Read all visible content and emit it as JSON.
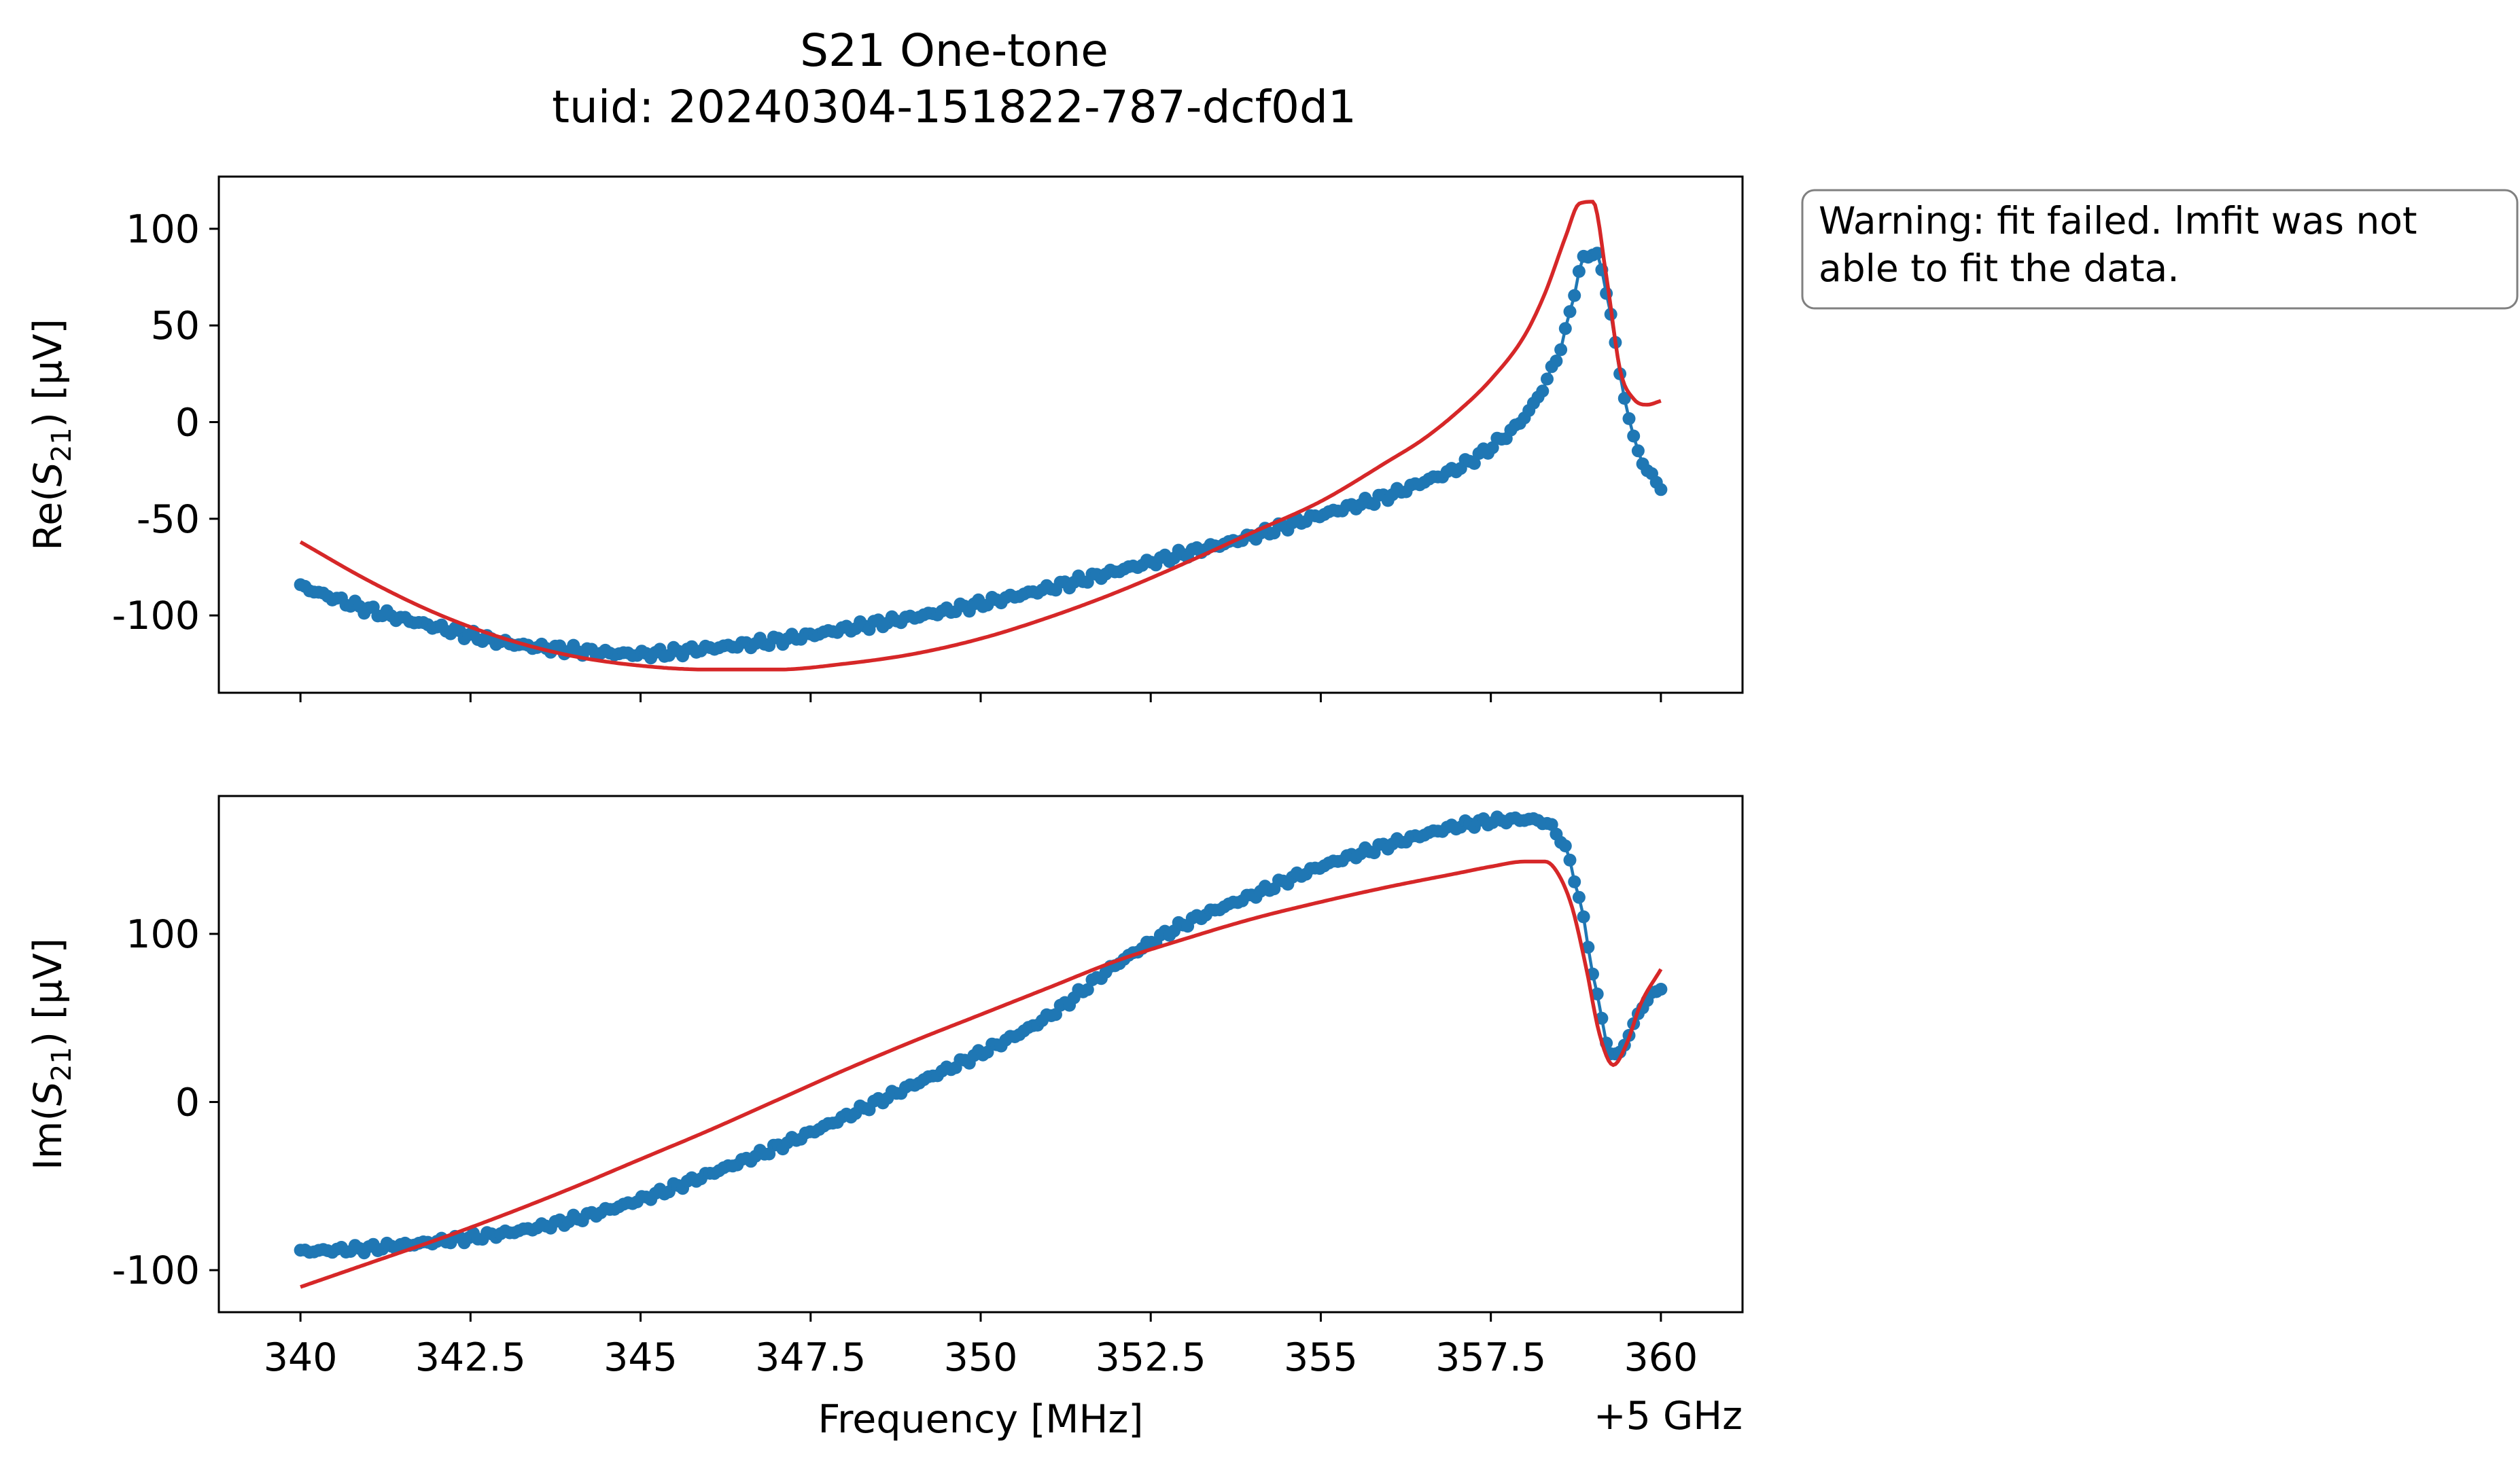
{
  "figure": {
    "title_line1": "S21 One-tone",
    "title_line2": "tuid: 20240304-151822-787-dcf0d1",
    "warning_line1": "Warning: fit failed. lmfit was not",
    "warning_line2": "able to fit the data.",
    "x_offset_label": "+5 GHz",
    "colors": {
      "data": "#1f77b4",
      "fit": "#d62728",
      "axes": "#000000",
      "warning_border": "#808080"
    }
  },
  "chart_data": [
    {
      "type": "line",
      "panel": "top",
      "xlabel": "",
      "ylabel": "Re(S21) [µV]",
      "ylabel_parts": {
        "pre": "Re(",
        "S": "S",
        "sub": "21",
        "post": ") [µV]"
      },
      "xlim": [
        338.8,
        361.2
      ],
      "ylim": [
        -140,
        127
      ],
      "x_ticks": [
        340,
        342.5,
        345,
        347.5,
        350,
        352.5,
        355,
        357.5,
        360
      ],
      "x_tick_labels_visible": false,
      "y_ticks": [
        100,
        50,
        0,
        -50,
        -100
      ],
      "y_tick_labels": [
        "100",
        "50",
        "0",
        "-50",
        "-100"
      ],
      "grid": false,
      "x_anchors": [
        340,
        341,
        342,
        343,
        344,
        345,
        346,
        347,
        348,
        349,
        350,
        351,
        352,
        353,
        354,
        355,
        356,
        356.5,
        357,
        357.5,
        358,
        358.3,
        358.6,
        358.8,
        359.0,
        359.2,
        359.4,
        359.6,
        359.8,
        360
      ],
      "series": [
        {
          "role": "data",
          "markers": true,
          "n_points": 300,
          "y_anchors": [
            -85,
            -97,
            -106,
            -114,
            -118,
            -120,
            -117,
            -113,
            -107,
            -101,
            -94,
            -86,
            -77,
            -68,
            -59,
            -48,
            -38,
            -31,
            -24,
            -13,
            3,
            20,
            47,
            78,
            88,
            68,
            25,
            -8,
            -25,
            -33
          ]
        },
        {
          "role": "fit",
          "markers": false,
          "y_anchors": [
            -62,
            -82,
            -99,
            -112,
            -121,
            -126,
            -128,
            -128,
            -125,
            -120,
            -112,
            -101,
            -88,
            -73,
            -57,
            -41,
            -20,
            -9,
            5,
            22,
            45,
            67,
            96,
            113,
            114,
            75,
            27,
            12,
            9,
            11
          ]
        }
      ]
    },
    {
      "type": "line",
      "panel": "bottom",
      "xlabel": "Frequency [MHz]",
      "ylabel": "Im(S21) [µV]",
      "ylabel_parts": {
        "pre": "Im(",
        "S": "S",
        "sub": "21",
        "post": ") [µV]"
      },
      "xlim": [
        338.8,
        361.2
      ],
      "ylim": [
        -125,
        182
      ],
      "x_ticks": [
        340,
        342.5,
        345,
        347.5,
        350,
        352.5,
        355,
        357.5,
        360
      ],
      "x_tick_labels": [
        "340",
        "342.5",
        "345",
        "347.5",
        "350",
        "352.5",
        "355",
        "357.5",
        "360"
      ],
      "y_ticks": [
        100,
        0,
        -100
      ],
      "y_tick_labels": [
        "100",
        "0",
        "-100"
      ],
      "grid": false,
      "x_anchors": [
        340,
        341,
        342,
        343,
        344,
        345,
        346,
        347,
        348,
        349,
        350,
        351,
        352,
        353,
        354,
        355,
        356,
        357,
        357.5,
        358,
        358.3,
        358.5,
        358.7,
        358.9,
        359.1,
        359.3,
        359.5,
        359.7,
        360
      ],
      "series": [
        {
          "role": "data",
          "markers": true,
          "n_points": 300,
          "y_anchors": [
            -89,
            -87,
            -83,
            -78,
            -70,
            -58,
            -43,
            -27,
            -9,
            10,
            29,
            51,
            82,
            106,
            123,
            140,
            153,
            164,
            167,
            168,
            166,
            158,
            138,
            100,
            55,
            27,
            37,
            55,
            69
          ]
        },
        {
          "role": "fit",
          "markers": false,
          "y_anchors": [
            -110,
            -96,
            -82,
            -67,
            -51,
            -34,
            -17,
            1,
            19,
            36,
            52,
            68,
            84,
            97,
            109,
            119,
            128,
            136,
            140,
            143,
            143,
            135,
            115,
            80,
            40,
            22,
            35,
            58,
            79
          ]
        }
      ]
    }
  ]
}
